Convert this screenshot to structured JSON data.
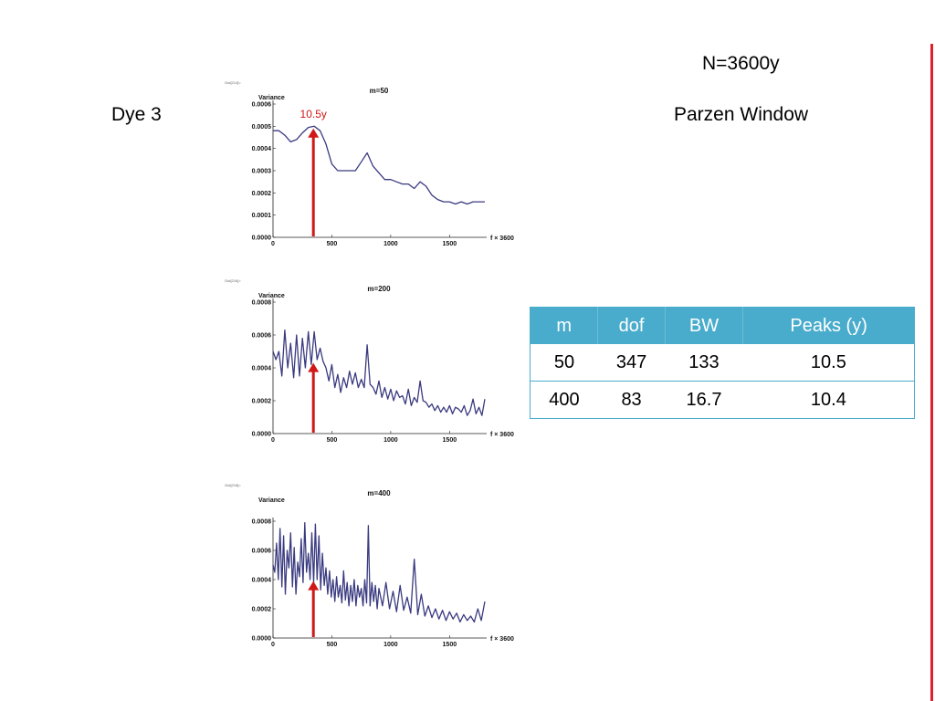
{
  "slide": {
    "title": "N=3600y",
    "left_label": "Dye 3",
    "right_label": "Parzen Window",
    "accent_color": "#e0202a"
  },
  "table": {
    "headers": [
      "m",
      "dof",
      "BW",
      "Peaks (y)"
    ],
    "rows": [
      [
        "50",
        "347",
        "133",
        "10.5"
      ],
      [
        "400",
        "83",
        "16.7",
        "10.4"
      ]
    ],
    "header_color": "#4aaccc"
  },
  "chart_data": [
    {
      "type": "line",
      "out_tag": "Out[214]=",
      "title": "m=50",
      "ylabel": "Variance",
      "xlabel": "f × 3600",
      "xlim": [
        0,
        1800
      ],
      "ylim": [
        0,
        0.0006
      ],
      "yticks": [
        "0.0000",
        "0.0001",
        "0.0002",
        "0.0003",
        "0.0004",
        "0.0005",
        "0.0006"
      ],
      "xticks": [
        "0",
        "500",
        "1000",
        "1500"
      ],
      "line_color": "#3a3a80",
      "annotation": {
        "text": "10.5y",
        "x": 343,
        "color": "#d01818"
      },
      "series": [
        {
          "x": [
            0,
            50,
            100,
            150,
            200,
            250,
            300,
            350,
            400,
            450,
            500,
            550,
            600,
            650,
            700,
            750,
            800,
            850,
            900,
            950,
            1000,
            1050,
            1100,
            1150,
            1200,
            1250,
            1300,
            1350,
            1400,
            1450,
            1500,
            1550,
            1600,
            1650,
            1700,
            1750,
            1800
          ],
          "y": [
            0.00048,
            0.00048,
            0.00046,
            0.00043,
            0.00044,
            0.00047,
            0.000495,
            0.0005,
            0.00048,
            0.00042,
            0.00033,
            0.0003,
            0.0003,
            0.0003,
            0.0003,
            0.00034,
            0.00038,
            0.00032,
            0.00029,
            0.00026,
            0.00026,
            0.00025,
            0.00024,
            0.00024,
            0.00022,
            0.00025,
            0.00023,
            0.00019,
            0.00017,
            0.00016,
            0.00016,
            0.00015,
            0.00016,
            0.00015,
            0.00016,
            0.00016,
            0.00016
          ]
        }
      ]
    },
    {
      "type": "line",
      "out_tag": "Out[216]=",
      "title": "m=200",
      "ylabel": "Variance",
      "xlabel": "f × 3600",
      "xlim": [
        0,
        1800
      ],
      "ylim": [
        0,
        0.0008
      ],
      "yticks": [
        "0.0000",
        "0.0002",
        "0.0004",
        "0.0006",
        "0.0008"
      ],
      "xticks": [
        "0",
        "500",
        "1000",
        "1500"
      ],
      "line_color": "#3a3a80",
      "annotation": {
        "text": "",
        "x": 343,
        "color": "#d01818"
      },
      "series": [
        {
          "x": [
            0,
            25,
            50,
            75,
            100,
            125,
            150,
            175,
            200,
            225,
            250,
            275,
            300,
            325,
            350,
            375,
            400,
            425,
            450,
            475,
            500,
            525,
            550,
            575,
            600,
            625,
            650,
            675,
            700,
            725,
            750,
            775,
            800,
            825,
            850,
            875,
            900,
            925,
            950,
            975,
            1000,
            1025,
            1050,
            1075,
            1100,
            1125,
            1150,
            1175,
            1200,
            1225,
            1250,
            1275,
            1300,
            1325,
            1350,
            1375,
            1400,
            1425,
            1450,
            1475,
            1500,
            1525,
            1550,
            1575,
            1600,
            1625,
            1650,
            1675,
            1700,
            1725,
            1750,
            1775,
            1800
          ],
          "y": [
            0.0005,
            0.00045,
            0.0005,
            0.00035,
            0.00063,
            0.0004,
            0.00055,
            0.00034,
            0.0006,
            0.00035,
            0.00058,
            0.0004,
            0.00062,
            0.00042,
            0.00062,
            0.00045,
            0.00052,
            0.00044,
            0.0004,
            0.00032,
            0.00042,
            0.00028,
            0.00036,
            0.00025,
            0.00034,
            0.00028,
            0.00038,
            0.0003,
            0.00037,
            0.00028,
            0.00033,
            0.00028,
            0.00054,
            0.0003,
            0.00028,
            0.00024,
            0.00032,
            0.00022,
            0.00028,
            0.00021,
            0.00027,
            0.0002,
            0.00026,
            0.00022,
            0.00023,
            0.00018,
            0.00027,
            0.00017,
            0.00022,
            0.00019,
            0.00032,
            0.0002,
            0.00019,
            0.00016,
            0.00018,
            0.00014,
            0.00017,
            0.00013,
            0.00016,
            0.00013,
            0.00017,
            0.00012,
            0.00016,
            0.00015,
            0.00013,
            0.00017,
            0.00011,
            0.00014,
            0.00021,
            0.00012,
            0.00016,
            0.00011,
            0.00021
          ]
        }
      ]
    },
    {
      "type": "line",
      "out_tag": "Out[218]=",
      "title": "m=400",
      "ylabel": "Variance",
      "xlabel": "f × 3600",
      "xlim": [
        0,
        1800
      ],
      "ylim": [
        0,
        0.0008
      ],
      "yticks": [
        "0.0000",
        "0.0002",
        "0.0004",
        "0.0006",
        "0.0008"
      ],
      "xticks": [
        "0",
        "500",
        "1000",
        "1500"
      ],
      "line_color": "#3a3a80",
      "annotation": {
        "text": "",
        "x": 343,
        "color": "#d01818"
      },
      "series": [
        {
          "x": [
            0,
            15,
            30,
            45,
            60,
            75,
            90,
            105,
            120,
            135,
            150,
            165,
            180,
            195,
            210,
            225,
            240,
            255,
            270,
            285,
            300,
            315,
            330,
            345,
            360,
            375,
            390,
            405,
            420,
            435,
            450,
            465,
            480,
            495,
            510,
            525,
            540,
            555,
            570,
            585,
            600,
            615,
            630,
            645,
            660,
            675,
            690,
            705,
            720,
            735,
            750,
            765,
            780,
            795,
            810,
            825,
            840,
            855,
            870,
            885,
            900,
            930,
            960,
            990,
            1020,
            1050,
            1080,
            1110,
            1140,
            1170,
            1200,
            1230,
            1260,
            1290,
            1320,
            1350,
            1380,
            1410,
            1440,
            1470,
            1500,
            1530,
            1560,
            1590,
            1620,
            1650,
            1680,
            1710,
            1740,
            1770,
            1800
          ],
          "y": [
            0.0005,
            0.00045,
            0.00065,
            0.0004,
            0.00075,
            0.00035,
            0.0007,
            0.0003,
            0.0006,
            0.00048,
            0.00072,
            0.00035,
            0.00062,
            0.0003,
            0.00052,
            0.00042,
            0.00068,
            0.00038,
            0.00079,
            0.00045,
            0.00058,
            0.0004,
            0.00072,
            0.00038,
            0.00078,
            0.0004,
            0.0007,
            0.00033,
            0.00058,
            0.00036,
            0.00048,
            0.0003,
            0.00046,
            0.00028,
            0.0004,
            0.00025,
            0.00042,
            0.00028,
            0.00036,
            0.00024,
            0.00046,
            0.00026,
            0.00038,
            0.00022,
            0.00036,
            0.00025,
            0.0004,
            0.00022,
            0.00036,
            0.00028,
            0.00034,
            0.00022,
            0.0004,
            0.00024,
            0.00077,
            0.00022,
            0.00038,
            0.00025,
            0.00036,
            0.0002,
            0.00034,
            0.00022,
            0.00038,
            0.0002,
            0.00032,
            0.00018,
            0.00036,
            0.00019,
            0.00028,
            0.00017,
            0.00054,
            0.00016,
            0.0003,
            0.00015,
            0.00022,
            0.00014,
            0.0002,
            0.00013,
            0.00019,
            0.00012,
            0.00018,
            0.00013,
            0.00017,
            0.00011,
            0.00016,
            0.00012,
            0.00015,
            0.00011,
            0.0002,
            0.00012,
            0.00025
          ]
        }
      ]
    }
  ]
}
